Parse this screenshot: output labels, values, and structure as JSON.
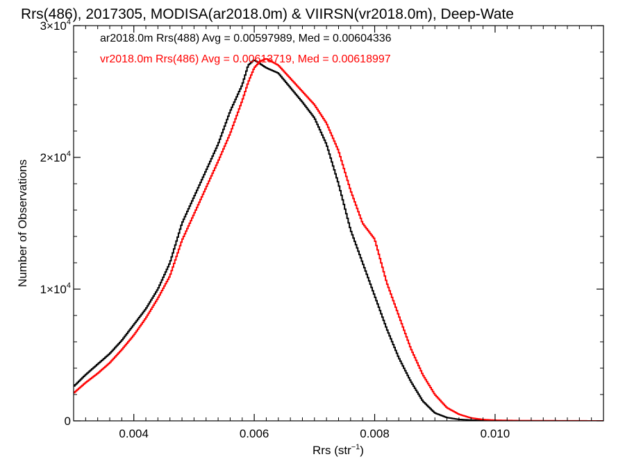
{
  "chart_data": {
    "type": "line",
    "title": "Rrs(486), 2017305, MODISA(ar2018.0m) & VIIRSN(vr2018.0m), Deep-Wate",
    "xlabel_main": "Rrs (str",
    "xlabel_sup": "−1",
    "xlabel_end": ")",
    "ylabel": "Number of Observations",
    "xlim": [
      0.003,
      0.0118
    ],
    "ylim": [
      0,
      30000
    ],
    "x_ticks": [
      {
        "value": 0.004,
        "label": "0.004"
      },
      {
        "value": 0.006,
        "label": "0.006"
      },
      {
        "value": 0.008,
        "label": "0.008"
      },
      {
        "value": 0.01,
        "label": "0.010"
      }
    ],
    "y_ticks": [
      {
        "value": 0,
        "base": "0",
        "exp": ""
      },
      {
        "value": 10000,
        "base": "1×10",
        "exp": "4"
      },
      {
        "value": 20000,
        "base": "2×10",
        "exp": "4"
      },
      {
        "value": 30000,
        "base": "3×10",
        "exp": "4"
      }
    ],
    "series": [
      {
        "legend": "ar2018.0m Rrs(488) Avg = 0.00597989, Med = 0.00604336",
        "color": "#000000",
        "points": [
          [
            0.003,
            2600
          ],
          [
            0.0032,
            3500
          ],
          [
            0.0034,
            4300
          ],
          [
            0.0036,
            5100
          ],
          [
            0.0038,
            6100
          ],
          [
            0.004,
            7300
          ],
          [
            0.0042,
            8500
          ],
          [
            0.0044,
            10000
          ],
          [
            0.0046,
            12000
          ],
          [
            0.0048,
            15000
          ],
          [
            0.005,
            17000
          ],
          [
            0.0052,
            19000
          ],
          [
            0.0054,
            21000
          ],
          [
            0.0056,
            23500
          ],
          [
            0.0058,
            25500
          ],
          [
            0.0059,
            27000
          ],
          [
            0.006,
            27400
          ],
          [
            0.0061,
            27100
          ],
          [
            0.0062,
            26800
          ],
          [
            0.0063,
            26600
          ],
          [
            0.0064,
            26400
          ],
          [
            0.0066,
            25300
          ],
          [
            0.0068,
            24200
          ],
          [
            0.007,
            23000
          ],
          [
            0.0072,
            21000
          ],
          [
            0.0074,
            18000
          ],
          [
            0.0076,
            14500
          ],
          [
            0.0078,
            12000
          ],
          [
            0.008,
            9500
          ],
          [
            0.0082,
            7000
          ],
          [
            0.0084,
            4800
          ],
          [
            0.0086,
            3000
          ],
          [
            0.0088,
            1500
          ],
          [
            0.009,
            600
          ],
          [
            0.0092,
            250
          ],
          [
            0.0094,
            110
          ],
          [
            0.0096,
            60
          ],
          [
            0.0098,
            30
          ],
          [
            0.01,
            10
          ],
          [
            0.0102,
            0
          ],
          [
            0.0118,
            0
          ]
        ]
      },
      {
        "legend": "vr2018.0m Rrs(486) Avg = 0.00613719, Med = 0.00618997",
        "color": "#ff0000",
        "points": [
          [
            0.003,
            2100
          ],
          [
            0.0032,
            2900
          ],
          [
            0.0034,
            3600
          ],
          [
            0.0036,
            4400
          ],
          [
            0.0038,
            5400
          ],
          [
            0.004,
            6500
          ],
          [
            0.0042,
            7800
          ],
          [
            0.0044,
            9300
          ],
          [
            0.0046,
            11000
          ],
          [
            0.0048,
            13700
          ],
          [
            0.005,
            15700
          ],
          [
            0.0052,
            17700
          ],
          [
            0.0054,
            19700
          ],
          [
            0.0056,
            21800
          ],
          [
            0.0058,
            24300
          ],
          [
            0.0059,
            25700
          ],
          [
            0.006,
            26800
          ],
          [
            0.0061,
            27300
          ],
          [
            0.0062,
            27500
          ],
          [
            0.0064,
            27000
          ],
          [
            0.0066,
            26000
          ],
          [
            0.0068,
            25000
          ],
          [
            0.007,
            24000
          ],
          [
            0.0072,
            22600
          ],
          [
            0.0074,
            20500
          ],
          [
            0.0076,
            17500
          ],
          [
            0.0078,
            15000
          ],
          [
            0.008,
            13800
          ],
          [
            0.0082,
            10500
          ],
          [
            0.0084,
            8000
          ],
          [
            0.0086,
            5500
          ],
          [
            0.0088,
            3500
          ],
          [
            0.009,
            2000
          ],
          [
            0.0092,
            1000
          ],
          [
            0.0094,
            500
          ],
          [
            0.0096,
            220
          ],
          [
            0.0098,
            100
          ],
          [
            0.01,
            50
          ],
          [
            0.0104,
            20
          ],
          [
            0.011,
            10
          ],
          [
            0.0118,
            0
          ]
        ]
      }
    ]
  }
}
